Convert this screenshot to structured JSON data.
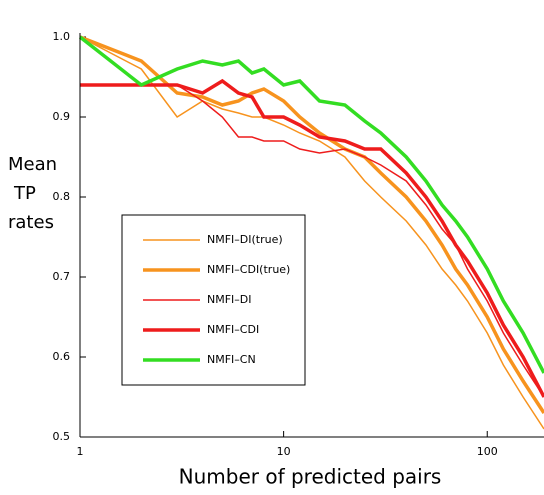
{
  "chart_data": {
    "type": "line",
    "y_label": "Mean\nTP\nrates",
    "x_label": "Number of predicted pairs",
    "x": [
      1,
      2,
      3,
      4,
      5,
      6,
      7,
      8,
      10,
      12,
      15,
      20,
      25,
      30,
      40,
      50,
      60,
      70,
      80,
      100,
      120,
      150,
      190
    ],
    "xlim": [
      1,
      190
    ],
    "xticks": [
      1,
      10,
      100
    ],
    "xscale": "log",
    "ylim": [
      0.5,
      1.0
    ],
    "yticks": [
      0.5,
      0.6,
      0.7,
      0.8,
      0.9,
      {
        "value": 1.0,
        "label": "1.0"
      }
    ],
    "series": [
      {
        "name": "NMFI–DI(true)",
        "color": "#f7931e",
        "linewidth": 1.5,
        "values": [
          1.0,
          0.96,
          0.9,
          0.92,
          0.91,
          0.905,
          0.9,
          0.9,
          0.89,
          0.88,
          0.87,
          0.85,
          0.82,
          0.8,
          0.77,
          0.74,
          0.71,
          0.69,
          0.67,
          0.63,
          0.59,
          0.55,
          0.51
        ]
      },
      {
        "name": "NMFI–CDI(true)",
        "color": "#f7931e",
        "linewidth": 3.5,
        "values": [
          1.0,
          0.97,
          0.93,
          0.925,
          0.915,
          0.92,
          0.93,
          0.935,
          0.92,
          0.9,
          0.88,
          0.86,
          0.85,
          0.83,
          0.8,
          0.77,
          0.74,
          0.71,
          0.69,
          0.65,
          0.61,
          0.57,
          0.53
        ]
      },
      {
        "name": "NMFI–DI",
        "color": "#ee1c1c",
        "linewidth": 1.5,
        "values": [
          0.94,
          0.94,
          0.94,
          0.92,
          0.9,
          0.875,
          0.875,
          0.87,
          0.87,
          0.86,
          0.855,
          0.86,
          0.85,
          0.84,
          0.82,
          0.79,
          0.76,
          0.74,
          0.71,
          0.67,
          0.63,
          0.59,
          0.55
        ]
      },
      {
        "name": "NMFI–CDI",
        "color": "#ee1c1c",
        "linewidth": 3.5,
        "values": [
          0.94,
          0.94,
          0.94,
          0.93,
          0.945,
          0.93,
          0.925,
          0.9,
          0.9,
          0.89,
          0.875,
          0.87,
          0.86,
          0.86,
          0.83,
          0.8,
          0.77,
          0.74,
          0.72,
          0.68,
          0.64,
          0.6,
          0.55
        ]
      },
      {
        "name": "NMFI–CN",
        "color": "#33dd22",
        "linewidth": 3.5,
        "values": [
          1.0,
          0.94,
          0.96,
          0.97,
          0.965,
          0.97,
          0.955,
          0.96,
          0.94,
          0.945,
          0.92,
          0.915,
          0.895,
          0.88,
          0.85,
          0.82,
          0.79,
          0.77,
          0.75,
          0.71,
          0.67,
          0.63,
          0.58
        ]
      }
    ]
  }
}
